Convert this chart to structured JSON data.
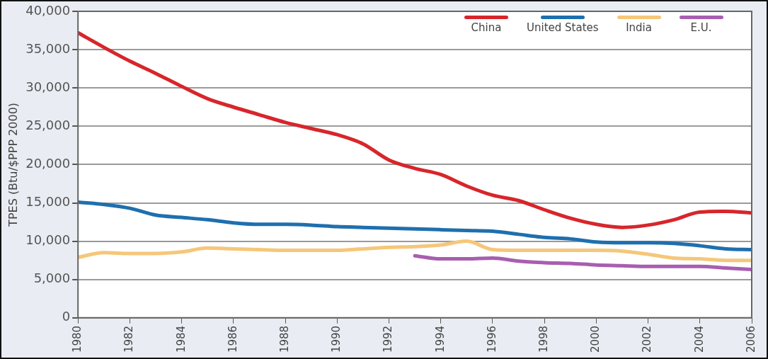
{
  "chart_data": {
    "type": "line",
    "ylabel": "TPES (Btu/$PPP 2000)",
    "x": [
      1980,
      1981,
      1982,
      1983,
      1984,
      1985,
      1986,
      1987,
      1988,
      1989,
      1990,
      1991,
      1992,
      1993,
      1994,
      1995,
      1996,
      1997,
      1998,
      1999,
      2000,
      2001,
      2002,
      2003,
      2004,
      2005,
      2006
    ],
    "xlim": [
      1980,
      2006
    ],
    "xticks": [
      1980,
      1982,
      1984,
      1986,
      1988,
      1990,
      1992,
      1994,
      1996,
      1998,
      2000,
      2002,
      2004,
      2006
    ],
    "ylim": [
      0,
      40000
    ],
    "yticks": [
      {
        "value": 0,
        "label": "0"
      },
      {
        "value": 5000,
        "label": "5,000"
      },
      {
        "value": 10000,
        "label": "10,000"
      },
      {
        "value": 15000,
        "label": "15,000"
      },
      {
        "value": 20000,
        "label": "20,000"
      },
      {
        "value": 25000,
        "label": "25,000"
      },
      {
        "value": 30000,
        "label": "30,000"
      },
      {
        "value": 35000,
        "label": "35,000"
      },
      {
        "value": 40000,
        "label": "40,000"
      }
    ],
    "grid": "y",
    "legend": "top right",
    "marker": "none",
    "line_style": "solid",
    "series": [
      {
        "name": "China",
        "color": "#d7262b",
        "values": [
          37200,
          35300,
          33500,
          31900,
          30200,
          28600,
          27500,
          26500,
          25500,
          24700,
          23900,
          22700,
          20600,
          19500,
          18700,
          17200,
          16000,
          15300,
          14100,
          13000,
          12200,
          11800,
          12100,
          12800,
          13800,
          13900,
          13700
        ]
      },
      {
        "name": "United States",
        "color": "#1f6fae",
        "values": [
          15100,
          14800,
          14300,
          13400,
          13100,
          12800,
          12400,
          12200,
          12200,
          12100,
          11900,
          11800,
          11700,
          11600,
          11500,
          11400,
          11300,
          10900,
          10500,
          10300,
          9900,
          9800,
          9800,
          9700,
          9400,
          9000,
          8900
        ]
      },
      {
        "name": "India",
        "color": "#f5c77a",
        "values": [
          7900,
          8500,
          8400,
          8400,
          8600,
          9100,
          9000,
          8900,
          8800,
          8800,
          8800,
          9000,
          9200,
          9300,
          9500,
          10000,
          8900,
          8800,
          8800,
          8800,
          8800,
          8700,
          8300,
          7800,
          7700,
          7500,
          7500
        ]
      },
      {
        "name": "E.U.",
        "color": "#a85eb0",
        "x": [
          1993,
          1994,
          1995,
          1996,
          1997,
          1998,
          1999,
          2000,
          2001,
          2002,
          2003,
          2004,
          2005,
          2006
        ],
        "values": [
          8100,
          7700,
          7700,
          7800,
          7400,
          7200,
          7100,
          6900,
          6800,
          6700,
          6700,
          6700,
          6500,
          6300
        ]
      }
    ]
  }
}
